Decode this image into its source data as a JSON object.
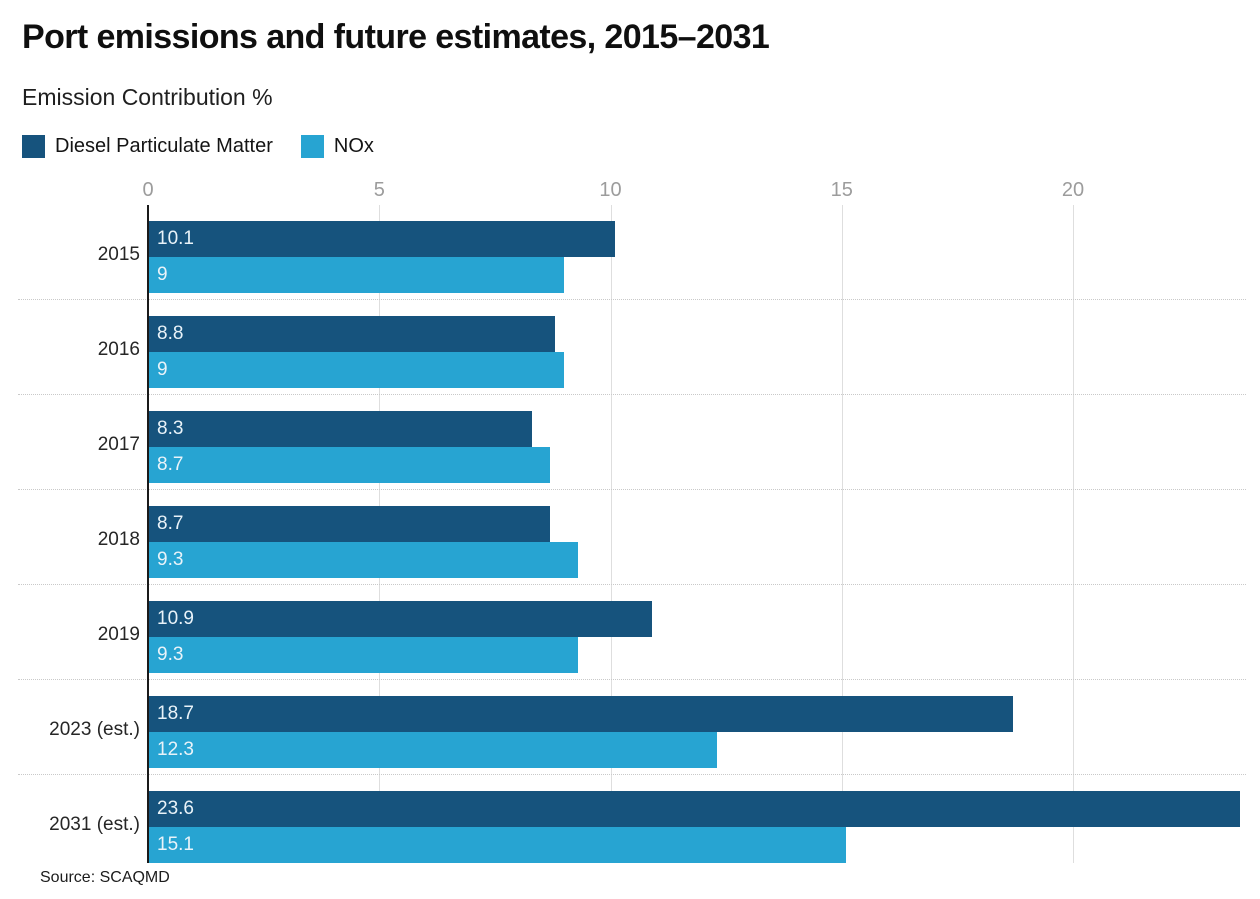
{
  "chart_data": {
    "type": "bar",
    "orientation": "horizontal",
    "title": "Port emissions and future estimates, 2015–2031",
    "value_axis_label": "Emission Contribution %",
    "categories": [
      "2015",
      "2016",
      "2017",
      "2018",
      "2019",
      "2023 (est.)",
      "2031 (est.)"
    ],
    "series": [
      {
        "name": "Diesel Particulate Matter",
        "color": "#16537d",
        "values": [
          10.1,
          8.8,
          8.3,
          8.7,
          10.9,
          18.7,
          23.6
        ]
      },
      {
        "name": "NOx",
        "color": "#27a4d2",
        "values": [
          9,
          9,
          8.7,
          9.3,
          9.3,
          12.3,
          15.1
        ]
      }
    ],
    "x_ticks": [
      0,
      5,
      10,
      15,
      20
    ],
    "xlim": [
      0,
      24
    ],
    "grid": "vertical-gridlines-with-dotted-row-separators",
    "legend_position": "top-left",
    "value_labels": "inside-bar-start",
    "source": "Source: SCAQMD",
    "colors": {
      "grid_line": "#dedede",
      "axis_line": "#1a1a1a",
      "tick_label": "#9c9c9c",
      "row_separator": "#c9c9c9",
      "value_label": "#e9f3f9"
    }
  }
}
